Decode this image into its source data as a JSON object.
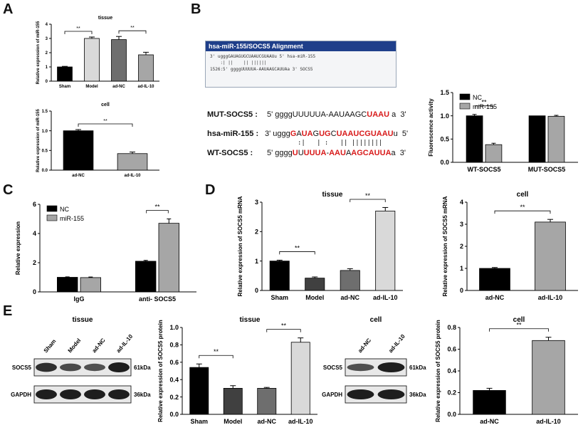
{
  "panels": {
    "A": "A",
    "B": "B",
    "C": "C",
    "D": "D",
    "E": "E"
  },
  "common": {
    "sig": "**"
  },
  "colors": {
    "black": "#000000",
    "dark": "#404040",
    "mid": "#6e6e6e",
    "grey": "#a6a6a6",
    "light": "#d9d9d9",
    "white": "#ffffff",
    "red": "#d81b1b",
    "title_bar": "#1f3f8a"
  },
  "alignment": {
    "title": "hsa-miR-155/SOCS5 Alignment",
    "line1": "3' ugggGAUAGUGCUAAUCGUAAUu 5' hsa-miR-155",
    "line2": "    :| ||    || ||||||",
    "line3": "1526:5' ggggUUUUUA-AAUAAGCAUUAa 3' SOCS5"
  },
  "sequences": {
    "mut_name": "MUT-SOCS5 :",
    "mut_5": "5' ggggUUUUUA-AAUAAGC",
    "mut_red": "UAAU",
    "mut_3": "a  3'",
    "mir_name": "hsa-miR-155 :",
    "mir_parts": [
      {
        "t": "3' uggg",
        "r": false
      },
      {
        "t": "G",
        "r": true
      },
      {
        "t": "A",
        "r": false
      },
      {
        "t": "UA",
        "r": true
      },
      {
        "t": "G",
        "r": false
      },
      {
        "t": "UG",
        "r": true
      },
      {
        "t": "C",
        "r": false
      },
      {
        "t": "UAA",
        "r": true
      },
      {
        "t": "UCGUAAU",
        "r": true
      },
      {
        "t": "u  5'",
        "r": false
      }
    ],
    "pairing": ":|   | :   || ||||||||",
    "wt_name": "WT-SOCS5 :",
    "wt_parts": [
      {
        "t": "5' gggg",
        "r": false
      },
      {
        "t": "U",
        "r": true
      },
      {
        "t": "U",
        "r": false
      },
      {
        "t": "UUUA",
        "r": true
      },
      {
        "t": "-",
        "r": false
      },
      {
        "t": "AAU",
        "r": true
      },
      {
        "t": "A",
        "r": false
      },
      {
        "t": "AGCAUUA",
        "r": true
      },
      {
        "t": "a  3'",
        "r": false
      }
    ]
  },
  "chart_data": [
    {
      "id": "A_tissue",
      "type": "bar",
      "title": "tissue",
      "ylabel": "Relative expression of miR-155",
      "categories": [
        "Sham",
        "Model",
        "ad-NC",
        "ad-IL-10"
      ],
      "values": [
        1.0,
        3.0,
        2.92,
        1.85
      ],
      "errors": [
        0.04,
        0.1,
        0.22,
        0.18
      ],
      "ylim": [
        0,
        4
      ],
      "yticks": [
        0,
        1,
        2,
        3,
        4
      ],
      "colors": [
        "#000000",
        "#d9d9d9",
        "#6e6e6e",
        "#a6a6a6"
      ],
      "sig": [
        [
          "Sham",
          "Model"
        ],
        [
          "ad-NC",
          "ad-IL-10"
        ]
      ]
    },
    {
      "id": "A_cell",
      "type": "bar",
      "title": "cell",
      "ylabel": "Relative expression of miR-155",
      "categories": [
        "ad-NC",
        "ad-IL-10"
      ],
      "values": [
        1.0,
        0.42
      ],
      "errors": [
        0.03,
        0.04
      ],
      "ylim": [
        0,
        1.5
      ],
      "yticks": [
        0.0,
        0.5,
        1.0,
        1.5
      ],
      "colors": [
        "#000000",
        "#a6a6a6"
      ],
      "sig": [
        [
          "ad-NC",
          "ad-IL-10"
        ]
      ]
    },
    {
      "id": "B_fluor",
      "type": "bar",
      "title": "",
      "ylabel": "Fluorescence activity",
      "categories": [
        "WT-SOCS5",
        "MUT-SOCS5"
      ],
      "series": [
        {
          "name": "NC",
          "values": [
            1.0,
            1.0
          ],
          "errors": [
            0.03,
            0.0
          ],
          "color": "#000000"
        },
        {
          "name": "miR-155",
          "values": [
            0.38,
            0.99
          ],
          "errors": [
            0.03,
            0.02
          ],
          "color": "#a6a6a6"
        }
      ],
      "ylim": [
        0,
        1.5
      ],
      "yticks": [
        0.0,
        0.5,
        1.0,
        1.5
      ],
      "legend": "top-left",
      "sig": [
        [
          "WT-SOCS5"
        ]
      ]
    },
    {
      "id": "C_rip",
      "type": "bar",
      "title": "",
      "ylabel": "Relative expression",
      "categories": [
        "IgG",
        "anti- SOCS5"
      ],
      "series": [
        {
          "name": "NC",
          "values": [
            1.0,
            2.1
          ],
          "errors": [
            0.03,
            0.06
          ],
          "color": "#000000"
        },
        {
          "name": "miR-155",
          "values": [
            0.98,
            4.7
          ],
          "errors": [
            0.04,
            0.3
          ],
          "color": "#a6a6a6"
        }
      ],
      "ylim": [
        0,
        6
      ],
      "yticks": [
        0,
        2,
        4,
        6
      ],
      "legend": "top-left",
      "sig": [
        [
          "anti- SOCS5"
        ]
      ]
    },
    {
      "id": "D_tissue",
      "type": "bar",
      "title": "tissue",
      "ylabel": "Relative expression of SOCS5 mRNA",
      "categories": [
        "Sham",
        "Model",
        "ad-NC",
        "ad-IL-10"
      ],
      "values": [
        1.0,
        0.42,
        0.68,
        2.7
      ],
      "errors": [
        0.03,
        0.04,
        0.06,
        0.12
      ],
      "ylim": [
        0,
        3
      ],
      "yticks": [
        0,
        1,
        2,
        3
      ],
      "colors": [
        "#000000",
        "#404040",
        "#6e6e6e",
        "#d9d9d9"
      ],
      "sig": [
        [
          "Sham",
          "Model"
        ],
        [
          "ad-NC",
          "ad-IL-10"
        ]
      ]
    },
    {
      "id": "D_cell",
      "type": "bar",
      "title": "cell",
      "ylabel": "Relative expression of SOCS5 mRNA",
      "categories": [
        "ad-NC",
        "ad-IL-10"
      ],
      "values": [
        1.0,
        3.1
      ],
      "errors": [
        0.04,
        0.12
      ],
      "ylim": [
        0,
        4
      ],
      "yticks": [
        0,
        1,
        2,
        3,
        4
      ],
      "colors": [
        "#000000",
        "#a6a6a6"
      ],
      "sig": [
        [
          "ad-NC",
          "ad-IL-10"
        ]
      ]
    },
    {
      "id": "E_tissue",
      "type": "bar",
      "title": "tissue",
      "ylabel": "Relative expression of SOCS5 protein",
      "categories": [
        "Sham",
        "Model",
        "ad-NC",
        "ad-IL-10"
      ],
      "values": [
        0.54,
        0.3,
        0.3,
        0.83
      ],
      "errors": [
        0.04,
        0.03,
        0.01,
        0.05
      ],
      "ylim": [
        0,
        1.0
      ],
      "yticks": [
        0.0,
        0.2,
        0.4,
        0.6,
        0.8,
        1.0
      ],
      "colors": [
        "#000000",
        "#404040",
        "#6e6e6e",
        "#d9d9d9"
      ],
      "sig": [
        [
          "Sham",
          "Model"
        ],
        [
          "ad-NC",
          "ad-IL-10"
        ]
      ]
    },
    {
      "id": "E_cell",
      "type": "bar",
      "title": "cell",
      "ylabel": "Relative expression of SOCS5 protein",
      "categories": [
        "ad-NC",
        "ad-IL-10"
      ],
      "values": [
        0.22,
        0.68
      ],
      "errors": [
        0.02,
        0.03
      ],
      "ylim": [
        0,
        0.8
      ],
      "yticks": [
        0.0,
        0.2,
        0.4,
        0.6,
        0.8
      ],
      "colors": [
        "#000000",
        "#a6a6a6"
      ],
      "sig": [
        [
          "ad-NC",
          "ad-IL-10"
        ]
      ]
    }
  ],
  "blots": {
    "tissue": {
      "title": "tissue",
      "lanes": [
        "Sham",
        "Model",
        "ad-NC",
        "ad-IL-10"
      ],
      "rows": [
        {
          "name": "SOCS5",
          "mw": "61kDa",
          "intensity": [
            0.85,
            0.6,
            0.55,
            1.0
          ]
        },
        {
          "name": "GAPDH",
          "mw": "36kDa",
          "intensity": [
            1.0,
            1.0,
            1.0,
            1.0
          ]
        }
      ]
    },
    "cell": {
      "title": "cell",
      "lanes": [
        "ad-NC",
        "ad-IL-10"
      ],
      "rows": [
        {
          "name": "SOCS5",
          "mw": "61kDa",
          "intensity": [
            0.55,
            1.0
          ]
        },
        {
          "name": "GAPDH",
          "mw": "36kDa",
          "intensity": [
            1.0,
            1.0
          ]
        }
      ]
    }
  }
}
